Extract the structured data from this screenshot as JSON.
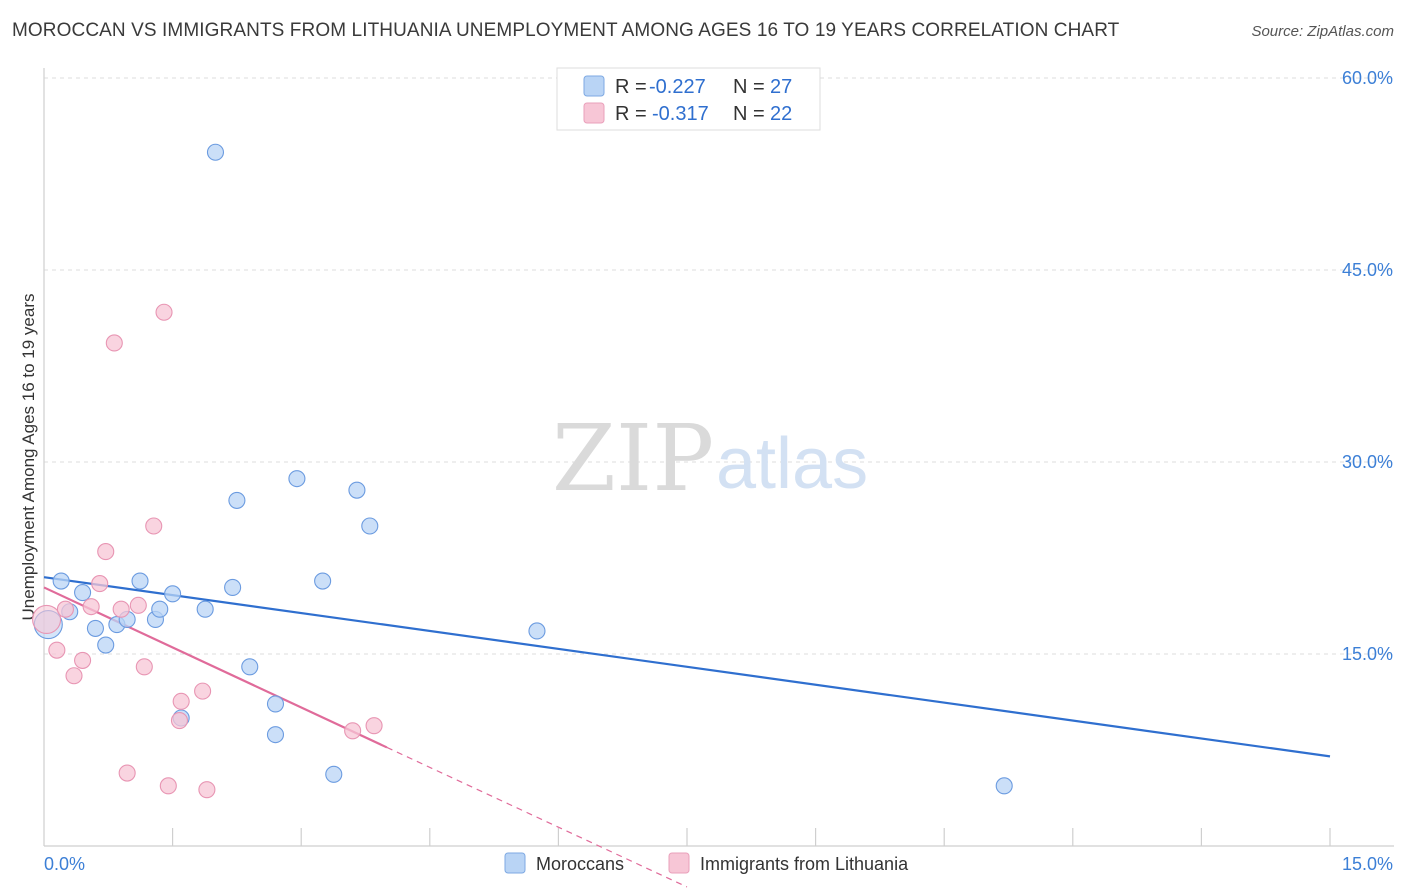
{
  "title": "MOROCCAN VS IMMIGRANTS FROM LITHUANIA UNEMPLOYMENT AMONG AGES 16 TO 19 YEARS CORRELATION CHART",
  "source": "Source: ZipAtlas.com",
  "watermark": {
    "part1": "ZIP",
    "part2": "atlas"
  },
  "colors": {
    "blue": "#2f6fcf",
    "blue_fill": "#b9d4f5",
    "pink": "#e06b9a",
    "pink_fill": "#f7c6d6",
    "axis_label": "#3c7fd6"
  },
  "legend_top": {
    "rows": [
      {
        "r_label": "R =",
        "r_value": "-0.227",
        "n_label": "N =",
        "n_value": "27"
      },
      {
        "r_label": "R =",
        "r_value": "-0.317",
        "n_label": "N =",
        "n_value": "22"
      }
    ]
  },
  "legend_bottom": {
    "series1": "Moroccans",
    "series2": "Immigrants from Lithuania"
  },
  "chart_data": {
    "type": "scatter",
    "title": "MOROCCAN VS IMMIGRANTS FROM LITHUANIA UNEMPLOYMENT AMONG AGES 16 TO 19 YEARS CORRELATION CHART",
    "xlabel": "",
    "ylabel": "Unemployment Among Ages 16 to 19 years",
    "xlim": [
      0,
      15
    ],
    "ylim": [
      0,
      60
    ],
    "x_tick_labels": [
      "0.0%",
      "15.0%"
    ],
    "y_ticks": [
      15,
      30,
      45,
      60
    ],
    "y_tick_labels": [
      "15.0%",
      "30.0%",
      "45.0%",
      "60.0%"
    ],
    "grid": true,
    "series": [
      {
        "name": "Moroccans",
        "r": -0.227,
        "n": 27,
        "points": [
          [
            0.05,
            17.3
          ],
          [
            0.2,
            20.7
          ],
          [
            0.3,
            18.3
          ],
          [
            0.45,
            19.8
          ],
          [
            0.6,
            17.0
          ],
          [
            0.72,
            15.7
          ],
          [
            0.85,
            17.3
          ],
          [
            0.97,
            17.7
          ],
          [
            1.12,
            20.7
          ],
          [
            1.3,
            17.7
          ],
          [
            1.35,
            18.5
          ],
          [
            1.5,
            19.7
          ],
          [
            1.6,
            10.0
          ],
          [
            1.88,
            18.5
          ],
          [
            2.0,
            54.2
          ],
          [
            2.2,
            20.2
          ],
          [
            2.25,
            27.0
          ],
          [
            2.4,
            14.0
          ],
          [
            2.7,
            11.1
          ],
          [
            2.7,
            8.7
          ],
          [
            2.95,
            28.7
          ],
          [
            3.25,
            20.7
          ],
          [
            3.38,
            5.6
          ],
          [
            3.65,
            27.8
          ],
          [
            3.8,
            25.0
          ],
          [
            5.75,
            16.8
          ],
          [
            11.2,
            4.7
          ]
        ],
        "trend": {
          "x0": 0,
          "y0": 21.0,
          "x1": 15,
          "y1": 7.0
        }
      },
      {
        "name": "Immigrants from Lithuania",
        "r": -0.317,
        "n": 22,
        "points": [
          [
            0.03,
            17.7
          ],
          [
            0.15,
            15.3
          ],
          [
            0.25,
            18.5
          ],
          [
            0.35,
            13.3
          ],
          [
            0.45,
            14.5
          ],
          [
            0.55,
            18.7
          ],
          [
            0.65,
            20.5
          ],
          [
            0.72,
            23.0
          ],
          [
            0.82,
            39.3
          ],
          [
            0.9,
            18.5
          ],
          [
            0.97,
            5.7
          ],
          [
            1.1,
            18.8
          ],
          [
            1.17,
            14.0
          ],
          [
            1.28,
            25.0
          ],
          [
            1.4,
            41.7
          ],
          [
            1.45,
            4.7
          ],
          [
            1.58,
            9.8
          ],
          [
            1.6,
            11.3
          ],
          [
            1.85,
            12.1
          ],
          [
            1.9,
            4.4
          ],
          [
            3.6,
            9.0
          ],
          [
            3.85,
            9.4
          ]
        ],
        "trend": {
          "x0": 0,
          "y0": 20.2,
          "x1": 4.0,
          "y1": 7.7
        },
        "trend_dashed_to": {
          "x": 7.5,
          "y": -3.2
        }
      }
    ]
  }
}
